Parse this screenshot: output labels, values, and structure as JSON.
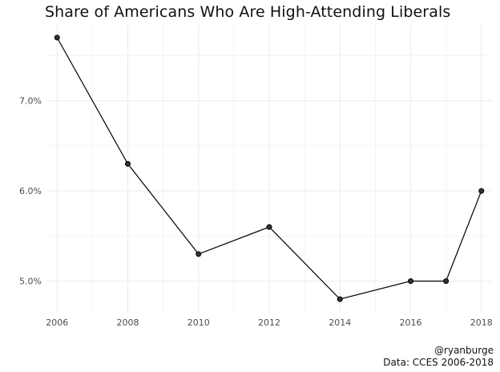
{
  "chart_data": {
    "type": "line",
    "title": "Share of Americans Who Are High-Attending Liberals",
    "xlabel": "",
    "ylabel": "",
    "x": [
      2006,
      2008,
      2010,
      2012,
      2014,
      2016,
      2017,
      2018
    ],
    "series": [
      {
        "values": [
          7.7,
          6.3,
          5.3,
          5.6,
          4.8,
          5.0,
          5.0,
          6.0
        ]
      }
    ],
    "x_ticks": [
      2006,
      2008,
      2010,
      2012,
      2014,
      2016,
      2018
    ],
    "x_tick_labels": [
      "2006",
      "2008",
      "2010",
      "2012",
      "2014",
      "2016",
      "2018"
    ],
    "y_ticks": [
      5.0,
      6.0,
      7.0
    ],
    "y_tick_labels": [
      "5.0%",
      "6.0%",
      "7.0%"
    ],
    "xlim": [
      2005.7,
      2018.3
    ],
    "ylim": [
      4.65,
      7.85
    ],
    "grid": true,
    "legend": "none",
    "line_color": "#000000",
    "point_color": "#333333",
    "grid_color": "#ebebeb"
  },
  "caption": {
    "line1": "@ryanburge",
    "line2": "Data: CCES 2006-2018"
  }
}
